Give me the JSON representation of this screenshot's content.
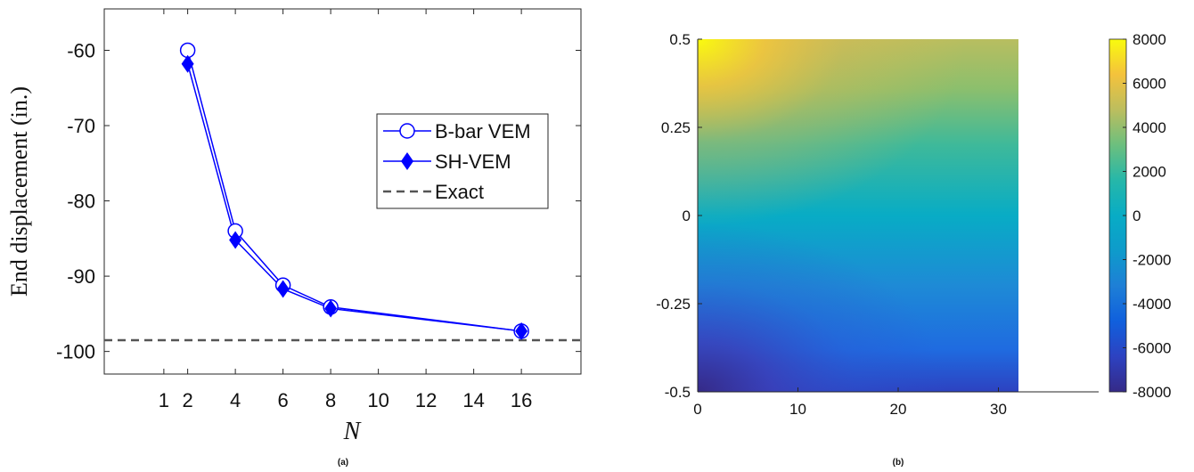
{
  "chart_data": [
    {
      "type": "line",
      "panel_label": "(a)",
      "xlabel": "N",
      "ylabel": "End displacement (in.)",
      "xlim": [
        -1.5,
        18.5
      ],
      "ylim": [
        -103,
        -54.5
      ],
      "xticks": [
        1,
        2,
        4,
        6,
        8,
        10,
        12,
        14,
        16
      ],
      "xtick_labels": [
        "1",
        "2",
        "4",
        "6",
        "8",
        "10",
        "12",
        "14",
        "16"
      ],
      "yticks": [
        -60,
        -70,
        -80,
        -90,
        -100
      ],
      "ytick_labels": [
        "-60",
        "-70",
        "-80",
        "-90",
        "-100"
      ],
      "legend_position": "right",
      "series": [
        {
          "name": "B-bar VEM",
          "marker": "circle",
          "color": "#0000ff",
          "x": [
            2,
            4,
            6,
            8,
            16
          ],
          "y": [
            -60.0,
            -84.0,
            -91.2,
            -94.1,
            -97.3
          ]
        },
        {
          "name": "SH-VEM",
          "marker": "diamond",
          "color": "#0000ff",
          "x": [
            2,
            4,
            6,
            8,
            16
          ],
          "y": [
            -61.8,
            -85.2,
            -91.7,
            -94.3,
            -97.3
          ]
        },
        {
          "name": "Exact",
          "style": "dashed",
          "color": "#555555",
          "y_constant": -98.5
        }
      ]
    },
    {
      "type": "heatmap",
      "panel_label": "(b)",
      "xlim": [
        0,
        40
      ],
      "ylim": [
        -0.5,
        0.5
      ],
      "domain_x": [
        0,
        32
      ],
      "xticks": [
        0,
        10,
        20,
        30
      ],
      "xtick_labels": [
        "0",
        "10",
        "20",
        "30"
      ],
      "yticks": [
        0.5,
        0.25,
        0,
        -0.25,
        -0.5
      ],
      "ytick_labels": [
        "0.5",
        "0.25",
        "0",
        "-0.25",
        "-0.5"
      ],
      "colorbar": {
        "colormap": "parula",
        "range": [
          -8000,
          8000
        ],
        "ticks": [
          8000,
          6000,
          4000,
          2000,
          0,
          -2000,
          -4000,
          -6000,
          -8000
        ],
        "tick_labels": [
          "8000",
          "6000",
          "4000",
          "2000",
          "0",
          "-2000",
          "-4000",
          "-6000",
          "-8000"
        ]
      }
    }
  ]
}
